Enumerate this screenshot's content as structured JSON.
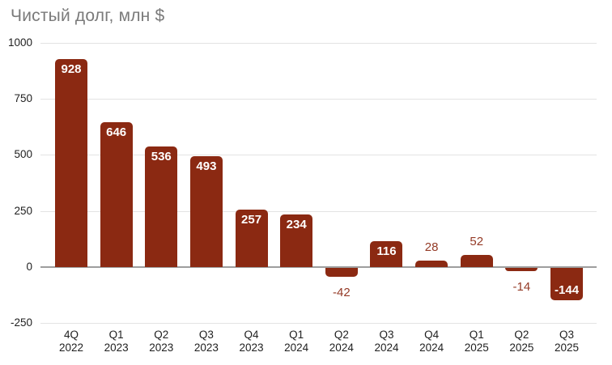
{
  "chart_data": {
    "type": "bar",
    "title": "Чистый долг, млн $",
    "categories": [
      "4Q 2022",
      "Q1 2023",
      "Q2 2023",
      "Q3 2023",
      "Q4 2023",
      "Q1 2024",
      "Q2 2024",
      "Q3 2024",
      "Q4 2024",
      "Q1 2025",
      "Q2 2025",
      "Q3 2025"
    ],
    "values": [
      928,
      646,
      536,
      493,
      257,
      234,
      -42,
      116,
      28,
      52,
      -14,
      -144
    ],
    "value_label_placement": [
      "inside",
      "inside",
      "inside",
      "inside",
      "inside",
      "inside",
      "outside",
      "inside",
      "outside",
      "outside",
      "outside",
      "inside"
    ],
    "yticks": [
      1000,
      750,
      500,
      250,
      0,
      -250
    ],
    "ylim": [
      -250,
      1000
    ],
    "xlabel": "",
    "ylabel": "",
    "grid": "horizontal",
    "legend_position": "none",
    "colors": {
      "bar": "#8b2912",
      "value_label_inside": "#ffffff",
      "value_label_outside": "#943a26",
      "title": "#7a7a7a",
      "axis_text": "#1f1f1f",
      "gridline": "#e3e3e3",
      "zero_line": "#9e9e9e",
      "background": "#ffffff"
    }
  }
}
